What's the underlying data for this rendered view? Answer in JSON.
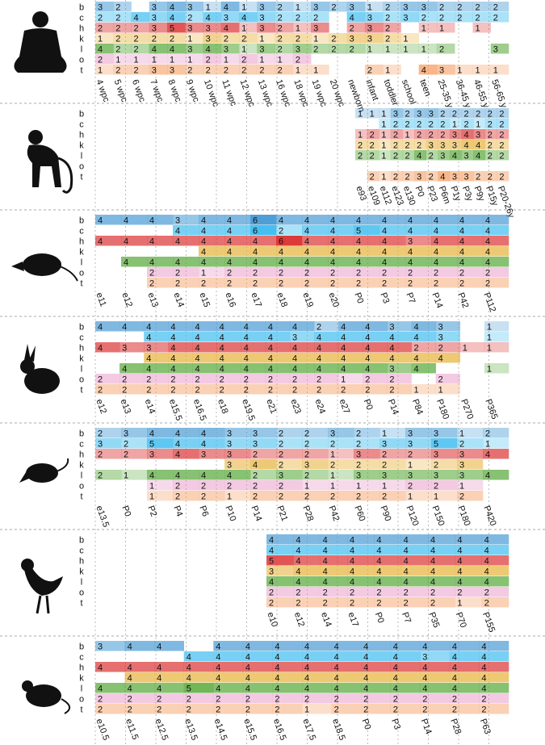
{
  "chart_data": [
    {
      "type": "heatmap",
      "rows": [
        "b",
        "c",
        "h",
        "k",
        "l",
        "o",
        "t"
      ],
      "colors": [
        "#4f9fd6",
        "#45bff0",
        "#dd3a3a",
        "#e8b440",
        "#5aaa3c",
        "#e48ac0",
        "#f59a5c"
      ],
      "columns": [
        "4 wpc",
        "5 wpc",
        "6 wpc",
        "7 wpc",
        "8 wpc",
        "9 wpc",
        "10 wpc",
        "11 wpc",
        "12 wpc",
        "13 wpc",
        "16 wpc",
        "18 wpc",
        "19 wpc",
        "20 wpc",
        "newborn",
        "infant",
        "toddler",
        "school",
        "teen",
        "25-35 y",
        "36-45 y",
        "46-55 y",
        "56-65 y"
      ],
      "values": [
        [
          3,
          2,
          null,
          3,
          4,
          3,
          1,
          4,
          1,
          3,
          2,
          1,
          3,
          2,
          3,
          1,
          2,
          3,
          3,
          2,
          2,
          2,
          2
        ],
        [
          2,
          2,
          4,
          3,
          4,
          2,
          4,
          3,
          4,
          3,
          2,
          2,
          2,
          null,
          4,
          3,
          2,
          3,
          2,
          2,
          2,
          2,
          2
        ],
        [
          2,
          2,
          2,
          3,
          5,
          3,
          3,
          4,
          1,
          3,
          2,
          1,
          3,
          null,
          2,
          3,
          2,
          null,
          1,
          1,
          null,
          1,
          null
        ],
        [
          1,
          2,
          2,
          2,
          2,
          1,
          3,
          2,
          2,
          1,
          2,
          2,
          1,
          2,
          3,
          3,
          2,
          1,
          null,
          null,
          null,
          null,
          null
        ],
        [
          4,
          2,
          2,
          4,
          4,
          3,
          4,
          3,
          1,
          3,
          2,
          3,
          2,
          2,
          2,
          1,
          1,
          1,
          1,
          2,
          null,
          null,
          3
        ],
        [
          2,
          1,
          1,
          1,
          1,
          1,
          2,
          1,
          2,
          1,
          1,
          2,
          null,
          null,
          null,
          null,
          null,
          null,
          null,
          null,
          null,
          null,
          null
        ],
        [
          1,
          2,
          2,
          3,
          3,
          2,
          2,
          2,
          2,
          2,
          2,
          1,
          1,
          null,
          null,
          2,
          1,
          null,
          4,
          3,
          1,
          1,
          1
        ]
      ]
    },
    {
      "type": "heatmap",
      "rows": [
        "b",
        "c",
        "h",
        "k",
        "l",
        "o",
        "t"
      ],
      "colors": [
        "#4f9fd6",
        "#45bff0",
        "#dd3a3a",
        "#e8b440",
        "#5aaa3c",
        "#e48ac0",
        "#f59a5c"
      ],
      "columns": [
        "e93",
        "e109",
        "e112",
        "e123",
        "e130",
        "P0",
        "P23",
        "P6m",
        "P1y",
        "P3y",
        "P9y",
        "P15y",
        "P20-26y"
      ],
      "values": [
        [
          1,
          1,
          1,
          3,
          2,
          3,
          3,
          2,
          2,
          2,
          2,
          2,
          2
        ],
        [
          null,
          null,
          1,
          2,
          2,
          2,
          2,
          2,
          1,
          2,
          1,
          2,
          2
        ],
        [
          1,
          2,
          1,
          2,
          1,
          2,
          2,
          2,
          3,
          4,
          3,
          2,
          2
        ],
        [
          2,
          2,
          1,
          2,
          2,
          2,
          3,
          3,
          3,
          4,
          4,
          2,
          2
        ],
        [
          2,
          2,
          1,
          2,
          2,
          4,
          2,
          3,
          4,
          3,
          4,
          2,
          2
        ],
        [
          null,
          null,
          null,
          null,
          null,
          null,
          null,
          null,
          null,
          null,
          null,
          null,
          null
        ],
        [
          null,
          2,
          1,
          2,
          2,
          3,
          2,
          4,
          3,
          3,
          2,
          2,
          2
        ]
      ]
    },
    {
      "type": "heatmap",
      "rows": [
        "b",
        "c",
        "h",
        "k",
        "l",
        "o",
        "t"
      ],
      "colors": [
        "#4f9fd6",
        "#45bff0",
        "#dd3a3a",
        "#e8b440",
        "#5aaa3c",
        "#e48ac0",
        "#f59a5c"
      ],
      "columns": [
        "e11",
        "e12",
        "e13",
        "e14",
        "e15",
        "e16",
        "e17",
        "e18",
        "e19",
        "e20",
        "P0",
        "P3",
        "P7",
        "P14",
        "P42",
        "P112"
      ],
      "values": [
        [
          4,
          4,
          4,
          3,
          4,
          4,
          6,
          4,
          4,
          4,
          4,
          4,
          4,
          4,
          4,
          4
        ],
        [
          null,
          null,
          null,
          4,
          4,
          4,
          6,
          2,
          4,
          4,
          5,
          4,
          4,
          4,
          4,
          4
        ],
        [
          4,
          4,
          4,
          4,
          4,
          4,
          4,
          6,
          4,
          4,
          4,
          4,
          3,
          4,
          4,
          4
        ],
        [
          null,
          null,
          null,
          null,
          4,
          4,
          4,
          4,
          4,
          4,
          4,
          4,
          4,
          4,
          4,
          4
        ],
        [
          null,
          4,
          4,
          4,
          4,
          4,
          4,
          4,
          4,
          4,
          4,
          4,
          4,
          4,
          4,
          4
        ],
        [
          null,
          null,
          2,
          2,
          1,
          2,
          2,
          2,
          2,
          2,
          2,
          2,
          2,
          2,
          2,
          2
        ],
        [
          null,
          null,
          2,
          2,
          2,
          2,
          2,
          2,
          2,
          2,
          2,
          2,
          2,
          2,
          2,
          2
        ]
      ]
    },
    {
      "type": "heatmap",
      "rows": [
        "b",
        "c",
        "h",
        "k",
        "l",
        "o",
        "t"
      ],
      "colors": [
        "#4f9fd6",
        "#45bff0",
        "#dd3a3a",
        "#e8b440",
        "#5aaa3c",
        "#e48ac0",
        "#f59a5c"
      ],
      "columns": [
        "e12",
        "e13",
        "e14",
        "e15.5",
        "e16.5",
        "e18",
        "e19.5",
        "e21",
        "e23",
        "e24",
        "e27",
        "P0",
        "P14",
        "P84",
        "P180",
        "P270",
        "P365"
      ],
      "values": [
        [
          4,
          4,
          4,
          4,
          4,
          4,
          4,
          4,
          4,
          2,
          4,
          4,
          3,
          4,
          3,
          null,
          1
        ],
        [
          null,
          null,
          4,
          4,
          4,
          4,
          4,
          4,
          3,
          4,
          4,
          4,
          4,
          4,
          3,
          null,
          1
        ],
        [
          4,
          3,
          3,
          4,
          4,
          4,
          4,
          4,
          4,
          4,
          4,
          4,
          4,
          2,
          2,
          1,
          1
        ],
        [
          null,
          null,
          4,
          4,
          4,
          4,
          4,
          4,
          4,
          4,
          4,
          4,
          4,
          4,
          4,
          null,
          null
        ],
        [
          null,
          4,
          4,
          4,
          4,
          4,
          4,
          4,
          4,
          4,
          4,
          4,
          3,
          4,
          null,
          null,
          1
        ],
        [
          2,
          2,
          2,
          2,
          2,
          2,
          2,
          2,
          2,
          2,
          1,
          2,
          2,
          null,
          2,
          null,
          null
        ],
        [
          2,
          2,
          2,
          2,
          2,
          2,
          2,
          2,
          2,
          2,
          2,
          2,
          2,
          1,
          1,
          null,
          null
        ]
      ]
    },
    {
      "type": "heatmap",
      "rows": [
        "b",
        "c",
        "h",
        "k",
        "l",
        "o",
        "t"
      ],
      "colors": [
        "#4f9fd6",
        "#45bff0",
        "#dd3a3a",
        "#e8b440",
        "#5aaa3c",
        "#e48ac0",
        "#f59a5c"
      ],
      "columns": [
        "e13.5",
        "P0",
        "P2",
        "P4",
        "P6",
        "P10",
        "P14",
        "P21",
        "P28",
        "P42",
        "P60",
        "P90",
        "P120",
        "P150",
        "P180",
        "P420"
      ],
      "values": [
        [
          2,
          3,
          4,
          4,
          4,
          3,
          3,
          2,
          2,
          3,
          2,
          1,
          3,
          3,
          1,
          2
        ],
        [
          3,
          2,
          5,
          4,
          4,
          3,
          3,
          2,
          2,
          2,
          2,
          3,
          3,
          5,
          2,
          1
        ],
        [
          2,
          2,
          3,
          4,
          3,
          3,
          2,
          2,
          2,
          1,
          3,
          2,
          2,
          3,
          3,
          4
        ],
        [
          null,
          null,
          null,
          null,
          null,
          3,
          4,
          2,
          3,
          2,
          2,
          2,
          1,
          2,
          3,
          null
        ],
        [
          2,
          1,
          4,
          4,
          4,
          4,
          2,
          3,
          2,
          1,
          3,
          3,
          3,
          3,
          3,
          4
        ],
        [
          null,
          null,
          1,
          2,
          2,
          2,
          2,
          2,
          1,
          1,
          1,
          1,
          2,
          2,
          1,
          null
        ],
        [
          null,
          null,
          1,
          2,
          2,
          1,
          2,
          2,
          2,
          2,
          2,
          2,
          1,
          1,
          2,
          null
        ]
      ]
    },
    {
      "type": "heatmap",
      "rows": [
        "b",
        "c",
        "h",
        "k",
        "l",
        "o",
        "t"
      ],
      "colors": [
        "#4f9fd6",
        "#45bff0",
        "#dd3a3a",
        "#e8b440",
        "#5aaa3c",
        "#e48ac0",
        "#f59a5c"
      ],
      "columns": [
        "e10",
        "e12",
        "e14",
        "e17",
        "P0",
        "P7",
        "P35",
        "P70",
        "P155"
      ],
      "values": [
        [
          4,
          4,
          4,
          4,
          4,
          4,
          4,
          4,
          4
        ],
        [
          4,
          4,
          4,
          4,
          4,
          4,
          4,
          4,
          4
        ],
        [
          5,
          4,
          4,
          4,
          4,
          4,
          4,
          4,
          4
        ],
        [
          3,
          4,
          4,
          4,
          4,
          4,
          4,
          4,
          4
        ],
        [
          4,
          4,
          4,
          4,
          4,
          4,
          4,
          4,
          4
        ],
        [
          2,
          2,
          2,
          2,
          2,
          2,
          2,
          2,
          2
        ],
        [
          2,
          2,
          2,
          2,
          2,
          2,
          2,
          1,
          2
        ]
      ]
    },
    {
      "type": "heatmap",
      "rows": [
        "b",
        "c",
        "h",
        "k",
        "l",
        "o",
        "t"
      ],
      "colors": [
        "#4f9fd6",
        "#45bff0",
        "#dd3a3a",
        "#e8b440",
        "#5aaa3c",
        "#e48ac0",
        "#f59a5c"
      ],
      "columns": [
        "e10.5",
        "e11.5",
        "e12.5",
        "e13.5",
        "e14.5",
        "e15.5",
        "e16.5",
        "e17.5",
        "e18.5",
        "P0",
        "P3",
        "P14",
        "P28",
        "P63"
      ],
      "values": [
        [
          3,
          4,
          4,
          null,
          4,
          4,
          4,
          4,
          4,
          4,
          4,
          4,
          4,
          4
        ],
        [
          null,
          null,
          null,
          4,
          4,
          4,
          4,
          4,
          4,
          4,
          4,
          3,
          4,
          4
        ],
        [
          4,
          4,
          4,
          4,
          4,
          4,
          4,
          4,
          4,
          4,
          4,
          4,
          4,
          4
        ],
        [
          null,
          4,
          4,
          4,
          4,
          4,
          4,
          4,
          4,
          4,
          4,
          4,
          4,
          4
        ],
        [
          4,
          4,
          4,
          5,
          4,
          4,
          4,
          4,
          4,
          4,
          4,
          4,
          4,
          4
        ],
        [
          2,
          2,
          2,
          2,
          2,
          2,
          2,
          2,
          2,
          2,
          2,
          2,
          2,
          2
        ],
        [
          2,
          2,
          2,
          2,
          2,
          2,
          2,
          1,
          2,
          2,
          2,
          2,
          2,
          2
        ]
      ]
    }
  ]
}
